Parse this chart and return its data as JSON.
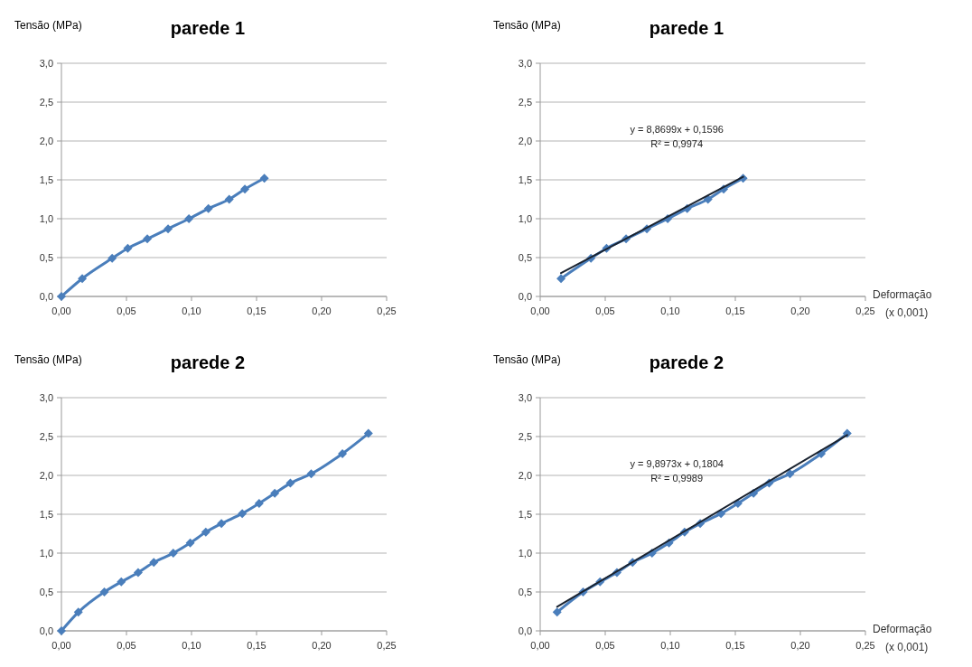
{
  "chart_data": [
    {
      "type": "line",
      "title": "parede 1",
      "ylabel": "Tensão (MPa)",
      "xlim": [
        0,
        0.25
      ],
      "ylim": [
        0,
        3
      ],
      "xticks": [
        {
          "value": 0,
          "label": "0,00"
        },
        {
          "value": 0.05,
          "label": "0,05"
        },
        {
          "value": 0.1,
          "label": "0,10"
        },
        {
          "value": 0.15,
          "label": "0,15"
        },
        {
          "value": 0.2,
          "label": "0,20"
        },
        {
          "value": 0.25,
          "label": "0,25"
        }
      ],
      "yticks": [
        {
          "value": 0,
          "label": "0,0"
        },
        {
          "value": 0.5,
          "label": "0,5"
        },
        {
          "value": 1,
          "label": "1,0"
        },
        {
          "value": 1.5,
          "label": "1,5"
        },
        {
          "value": 2,
          "label": "2,0"
        },
        {
          "value": 2.5,
          "label": "2,5"
        },
        {
          "value": 3,
          "label": "3,0"
        }
      ],
      "grid": "y",
      "marker": "diamond",
      "series": [
        {
          "color": "#4a7ebb",
          "x": [
            0,
            0.016,
            0.039,
            0.051,
            0.066,
            0.082,
            0.098,
            0.113,
            0.129,
            0.141,
            0.156
          ],
          "values": [
            0,
            0.23,
            0.49,
            0.62,
            0.74,
            0.87,
            1.0,
            1.13,
            1.25,
            1.38,
            1.52
          ]
        }
      ]
    },
    {
      "type": "line",
      "title": "parede 1",
      "ylabel": "Tensão (MPa)",
      "xlabel": "Deformação (x 0,001)",
      "xlim": [
        0,
        0.25
      ],
      "ylim": [
        0,
        3
      ],
      "xticks": [
        {
          "value": 0,
          "label": "0,00"
        },
        {
          "value": 0.05,
          "label": "0,05"
        },
        {
          "value": 0.1,
          "label": "0,10"
        },
        {
          "value": 0.15,
          "label": "0,15"
        },
        {
          "value": 0.2,
          "label": "0,20"
        },
        {
          "value": 0.25,
          "label": "0,25"
        }
      ],
      "yticks": [
        {
          "value": 0,
          "label": "0,0"
        },
        {
          "value": 0.5,
          "label": "0,5"
        },
        {
          "value": 1,
          "label": "1,0"
        },
        {
          "value": 1.5,
          "label": "1,5"
        },
        {
          "value": 2,
          "label": "2,0"
        },
        {
          "value": 2.5,
          "label": "2,5"
        },
        {
          "value": 3,
          "label": "3,0"
        }
      ],
      "grid": "y",
      "marker": "diamond",
      "annotations": [
        "y = 8,8699x + 0,1596",
        "R² = 0,9974"
      ],
      "series": [
        {
          "color": "#4a7ebb",
          "x": [
            0.016,
            0.039,
            0.051,
            0.066,
            0.082,
            0.098,
            0.113,
            0.129,
            0.141,
            0.156
          ],
          "values": [
            0.23,
            0.49,
            0.62,
            0.74,
            0.87,
            1.0,
            1.13,
            1.25,
            1.38,
            1.52
          ]
        },
        {
          "color": "#1a2330",
          "marker": "none",
          "x": [
            0.016,
            0.156
          ],
          "values": [
            0.3,
            1.54
          ]
        }
      ]
    },
    {
      "type": "line",
      "title": "parede 2",
      "ylabel": "Tensão (MPa)",
      "xlim": [
        0,
        0.25
      ],
      "ylim": [
        0,
        3
      ],
      "xticks": [
        {
          "value": 0,
          "label": "0,00"
        },
        {
          "value": 0.05,
          "label": "0,05"
        },
        {
          "value": 0.1,
          "label": "0,10"
        },
        {
          "value": 0.15,
          "label": "0,15"
        },
        {
          "value": 0.2,
          "label": "0,20"
        },
        {
          "value": 0.25,
          "label": "0,25"
        }
      ],
      "yticks": [
        {
          "value": 0,
          "label": "0,0"
        },
        {
          "value": 0.5,
          "label": "0,5"
        },
        {
          "value": 1,
          "label": "1,0"
        },
        {
          "value": 1.5,
          "label": "1,5"
        },
        {
          "value": 2,
          "label": "2,0"
        },
        {
          "value": 2.5,
          "label": "2,5"
        },
        {
          "value": 3,
          "label": "3,0"
        }
      ],
      "grid": "y",
      "marker": "diamond",
      "series": [
        {
          "color": "#4a7ebb",
          "x": [
            0,
            0.013,
            0.033,
            0.046,
            0.059,
            0.071,
            0.086,
            0.099,
            0.111,
            0.123,
            0.139,
            0.152,
            0.164,
            0.176,
            0.192,
            0.216,
            0.236
          ],
          "values": [
            0,
            0.24,
            0.5,
            0.63,
            0.75,
            0.88,
            1.0,
            1.13,
            1.27,
            1.38,
            1.51,
            1.64,
            1.77,
            1.9,
            2.02,
            2.28,
            2.54
          ]
        }
      ]
    },
    {
      "type": "line",
      "title": "parede 2",
      "ylabel": "Tensão (MPa)",
      "xlabel": "Deformação (x 0,001)",
      "xlim": [
        0,
        0.25
      ],
      "ylim": [
        0,
        3
      ],
      "xticks": [
        {
          "value": 0,
          "label": "0,00"
        },
        {
          "value": 0.05,
          "label": "0,05"
        },
        {
          "value": 0.1,
          "label": "0,10"
        },
        {
          "value": 0.15,
          "label": "0,15"
        },
        {
          "value": 0.2,
          "label": "0,20"
        },
        {
          "value": 0.25,
          "label": "0,25"
        }
      ],
      "yticks": [
        {
          "value": 0,
          "label": "0,0"
        },
        {
          "value": 0.5,
          "label": "0,5"
        },
        {
          "value": 1,
          "label": "1,0"
        },
        {
          "value": 1.5,
          "label": "1,5"
        },
        {
          "value": 2,
          "label": "2,0"
        },
        {
          "value": 2.5,
          "label": "2,5"
        },
        {
          "value": 3,
          "label": "3,0"
        }
      ],
      "grid": "y",
      "marker": "diamond",
      "annotations": [
        "y = 9,8973x + 0,1804",
        "R² = 0,9989"
      ],
      "series": [
        {
          "color": "#4a7ebb",
          "x": [
            0.013,
            0.033,
            0.046,
            0.059,
            0.071,
            0.086,
            0.099,
            0.111,
            0.123,
            0.139,
            0.152,
            0.164,
            0.176,
            0.192,
            0.216,
            0.236
          ],
          "values": [
            0.24,
            0.5,
            0.63,
            0.75,
            0.88,
            1.0,
            1.13,
            1.27,
            1.38,
            1.51,
            1.64,
            1.77,
            1.9,
            2.02,
            2.28,
            2.54
          ]
        },
        {
          "color": "#1a2330",
          "marker": "none",
          "x": [
            0.013,
            0.236
          ],
          "values": [
            0.31,
            2.52
          ]
        }
      ]
    }
  ]
}
